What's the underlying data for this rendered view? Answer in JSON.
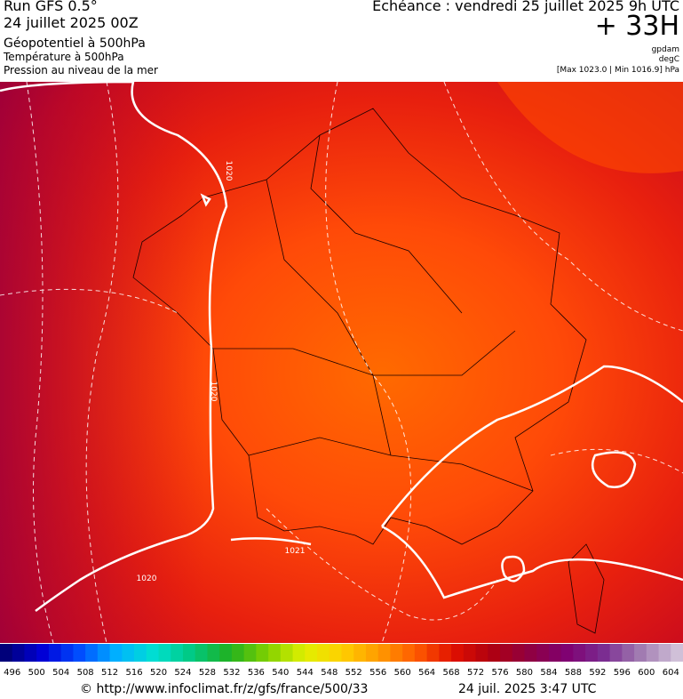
{
  "header": {
    "run": "Run GFS 0.5°",
    "run_date": "24 juillet 2025 00Z",
    "field1": "Géopotentiel à 500hPa",
    "field2": "Température à 500hPa",
    "field3": "Pression au niveau de la mer",
    "valid": "Echéance : vendredi 25 juillet 2025 9h UTC",
    "lead": "+ 33H",
    "unit1": "gpdam",
    "unit2": "degC",
    "extremes": "[Max 1023.0 | Min 1016.9] hPa"
  },
  "map": {
    "isobar_labels": [
      1020,
      1020,
      1020,
      1021
    ]
  },
  "colorbar": {
    "ticks": [
      496,
      500,
      504,
      508,
      512,
      516,
      520,
      524,
      528,
      532,
      536,
      540,
      544,
      548,
      552,
      556,
      560,
      564,
      568,
      572,
      576,
      580,
      584,
      588,
      592,
      596,
      600,
      604
    ]
  },
  "footer": {
    "source": "© http://www.infoclimat.fr/z/gfs/france/500/33",
    "generated": "24 juil. 2025  3:47 UTC"
  }
}
